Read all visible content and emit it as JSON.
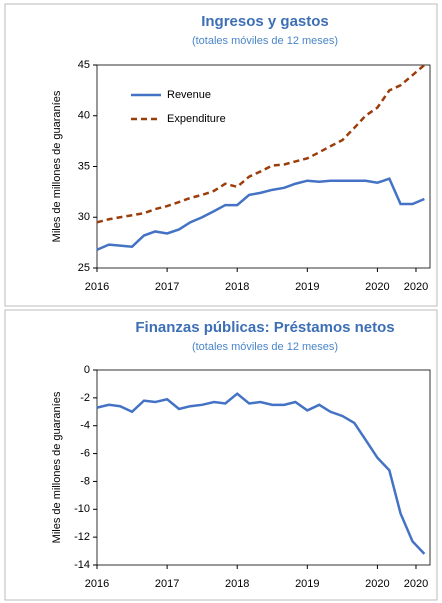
{
  "chart_data": [
    {
      "type": "line",
      "title": "Ingresos y gastos",
      "subtitle": "(totales móviles de 12 meses)",
      "y_label": "Miles de millones de guaraníes",
      "x": [
        2016,
        2016.17,
        2016.33,
        2016.5,
        2016.67,
        2016.83,
        2017,
        2017.17,
        2017.33,
        2017.5,
        2017.67,
        2017.83,
        2018,
        2018.17,
        2018.33,
        2018.5,
        2018.67,
        2018.83,
        2019,
        2019.17,
        2019.33,
        2019.5,
        2019.67,
        2019.83,
        2020,
        2020.17,
        2020.33,
        2020.5,
        2020.67
      ],
      "series": [
        {
          "name": "Revenue",
          "color": "#4472c4",
          "dash": false,
          "values": [
            26.8,
            27.3,
            27.2,
            27.1,
            28.2,
            28.6,
            28.4,
            28.8,
            29.5,
            30.0,
            30.6,
            31.2,
            31.2,
            32.2,
            32.4,
            32.7,
            32.9,
            33.3,
            33.6,
            33.5,
            33.6,
            33.6,
            33.6,
            33.6,
            33.4,
            33.8,
            31.3,
            31.3,
            31.8
          ]
        },
        {
          "name": "Expenditure",
          "color": "#9c3d0c",
          "dash": true,
          "values": [
            29.5,
            29.8,
            30.0,
            30.2,
            30.4,
            30.8,
            31.1,
            31.5,
            31.9,
            32.2,
            32.6,
            33.3,
            33.0,
            34.0,
            34.5,
            35.1,
            35.2,
            35.5,
            35.8,
            36.4,
            37.0,
            37.6,
            38.8,
            40.0,
            40.8,
            42.5,
            43.0,
            44.0,
            45.0
          ]
        }
      ],
      "xlim": [
        2016,
        2020.75
      ],
      "xticks": [
        2016,
        2017,
        2018,
        2019,
        2020,
        {
          "value": 2020.55,
          "label": "2020"
        }
      ],
      "ylim": [
        25,
        45
      ],
      "yticks": [
        25,
        30,
        35,
        40,
        45
      ],
      "legend": "upper left"
    },
    {
      "type": "line",
      "title": "Finanzas públicas: Préstamos netos",
      "subtitle": "(totales móviles de 12 meses)",
      "y_label": "Miles de millones de guaraníes",
      "x": [
        2016,
        2016.17,
        2016.33,
        2016.5,
        2016.67,
        2016.83,
        2017,
        2017.17,
        2017.33,
        2017.5,
        2017.67,
        2017.83,
        2018,
        2018.17,
        2018.33,
        2018.5,
        2018.67,
        2018.83,
        2019,
        2019.17,
        2019.33,
        2019.5,
        2019.67,
        2019.83,
        2020,
        2020.17,
        2020.33,
        2020.5,
        2020.67
      ],
      "series": [
        {
          "color": "#4472c4",
          "dash": false,
          "values": [
            -2.7,
            -2.5,
            -2.6,
            -3.0,
            -2.2,
            -2.3,
            -2.1,
            -2.8,
            -2.6,
            -2.5,
            -2.3,
            -2.4,
            -1.7,
            -2.4,
            -2.3,
            -2.5,
            -2.5,
            -2.3,
            -2.9,
            -2.5,
            -3.0,
            -3.3,
            -3.8,
            -5.0,
            -6.3,
            -7.2,
            -10.3,
            -12.3,
            -13.2
          ]
        }
      ],
      "xlim": [
        2016,
        2020.75
      ],
      "xticks": [
        2016,
        2017,
        2018,
        2019,
        2020,
        {
          "value": 2020.55,
          "label": "2020"
        }
      ],
      "ylim": [
        -14,
        0
      ],
      "yticks": [
        -14,
        -12,
        -10,
        -8,
        -6,
        -4,
        -2,
        0
      ]
    }
  ]
}
